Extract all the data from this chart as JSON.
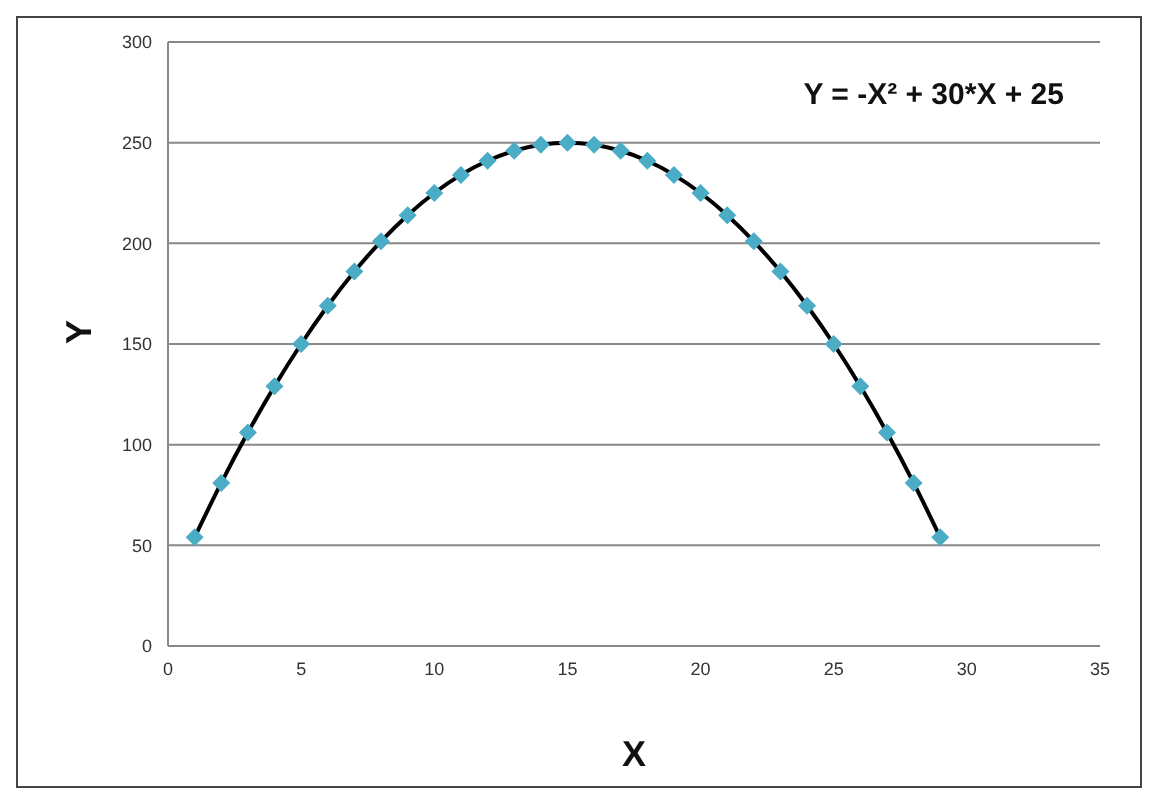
{
  "chart_data": {
    "type": "line",
    "xlabel": "X",
    "ylabel": "Y",
    "annotations": [
      "Y = -X² + 30*X + 25"
    ],
    "x": [
      1,
      2,
      3,
      4,
      5,
      6,
      7,
      8,
      9,
      10,
      11,
      12,
      13,
      14,
      15,
      16,
      17,
      18,
      19,
      20,
      21,
      22,
      23,
      24,
      25,
      26,
      27,
      28,
      29
    ],
    "series": [
      {
        "color": "#000000",
        "marker": "none",
        "values": [
          54,
          81,
          106,
          129,
          150,
          169,
          186,
          201,
          214,
          225,
          234,
          241,
          246,
          249,
          250,
          249,
          246,
          241,
          234,
          225,
          214,
          201,
          186,
          169,
          150,
          129,
          106,
          81,
          54
        ]
      },
      {
        "type": "scatter",
        "color": "#4bacc6",
        "marker": "diamond",
        "values": [
          54,
          81,
          106,
          129,
          150,
          169,
          186,
          201,
          214,
          225,
          234,
          241,
          246,
          249,
          250,
          249,
          246,
          241,
          234,
          225,
          214,
          201,
          186,
          169,
          150,
          129,
          106,
          81,
          54
        ]
      }
    ],
    "xlim": [
      0,
      35
    ],
    "xticks": [
      0,
      5,
      10,
      15,
      20,
      25,
      30,
      35
    ],
    "ylim": [
      0,
      300
    ],
    "yticks": [
      0,
      50,
      100,
      150,
      200,
      250,
      300
    ],
    "grid": "y"
  }
}
